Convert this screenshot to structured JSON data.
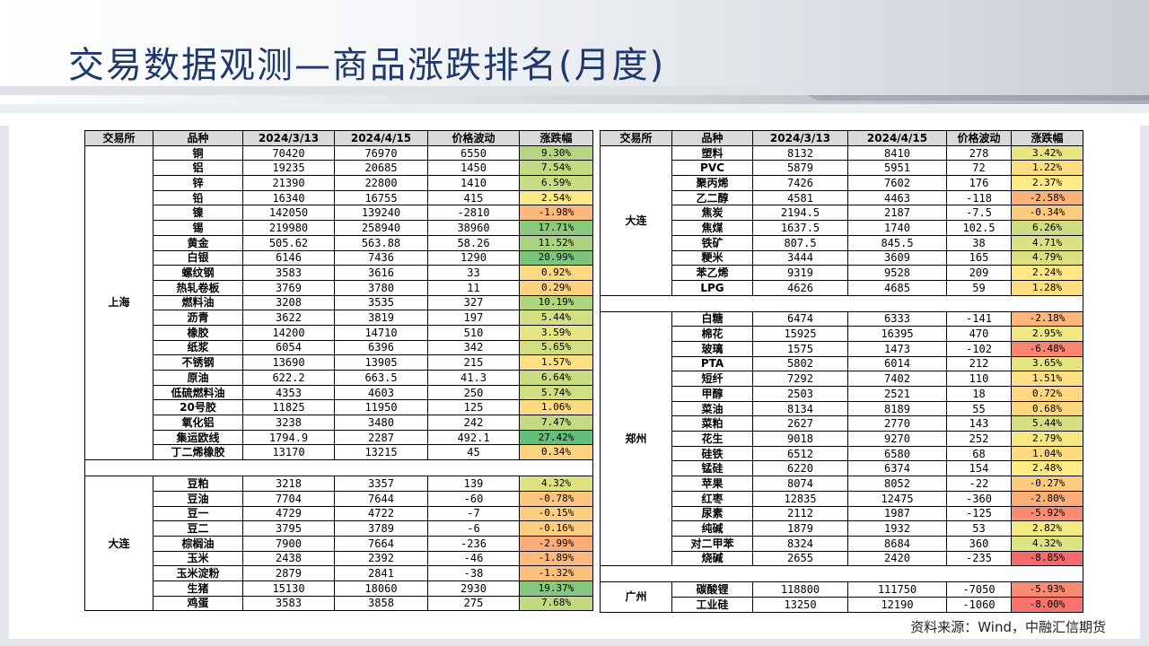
{
  "title": "交易数据观测—商品涨跌排名(月度)",
  "source": "资料来源：Wind，中融汇信期货",
  "headers": [
    "交易所",
    "品种",
    "2024/3/13",
    "2024/4/15",
    "价格波动",
    "涨跌幅"
  ],
  "left_groups": [
    {
      "exchange": "上海",
      "rows": [
        {
          "name": "铜",
          "d1": "70420",
          "d2": "76970",
          "chg": "6550",
          "pct": "9.30%",
          "v": 9.3
        },
        {
          "name": "铝",
          "d1": "19235",
          "d2": "20685",
          "chg": "1450",
          "pct": "7.54%",
          "v": 7.54
        },
        {
          "name": "锌",
          "d1": "21390",
          "d2": "22800",
          "chg": "1410",
          "pct": "6.59%",
          "v": 6.59
        },
        {
          "name": "铅",
          "d1": "16340",
          "d2": "16755",
          "chg": "415",
          "pct": "2.54%",
          "v": 2.54
        },
        {
          "name": "镍",
          "d1": "142050",
          "d2": "139240",
          "chg": "-2810",
          "pct": "-1.98%",
          "v": -1.98
        },
        {
          "name": "锡",
          "d1": "219980",
          "d2": "258940",
          "chg": "38960",
          "pct": "17.71%",
          "v": 17.71
        },
        {
          "name": "黄金",
          "d1": "505.62",
          "d2": "563.88",
          "chg": "58.26",
          "pct": "11.52%",
          "v": 11.52
        },
        {
          "name": "白银",
          "d1": "6146",
          "d2": "7436",
          "chg": "1290",
          "pct": "20.99%",
          "v": 20.99
        },
        {
          "name": "螺纹钢",
          "d1": "3583",
          "d2": "3616",
          "chg": "33",
          "pct": "0.92%",
          "v": 0.92
        },
        {
          "name": "热轧卷板",
          "d1": "3769",
          "d2": "3780",
          "chg": "11",
          "pct": "0.29%",
          "v": 0.29
        },
        {
          "name": "燃料油",
          "d1": "3208",
          "d2": "3535",
          "chg": "327",
          "pct": "10.19%",
          "v": 10.19
        },
        {
          "name": "沥青",
          "d1": "3622",
          "d2": "3819",
          "chg": "197",
          "pct": "5.44%",
          "v": 5.44
        },
        {
          "name": "橡胶",
          "d1": "14200",
          "d2": "14710",
          "chg": "510",
          "pct": "3.59%",
          "v": 3.59
        },
        {
          "name": "纸浆",
          "d1": "6054",
          "d2": "6396",
          "chg": "342",
          "pct": "5.65%",
          "v": 5.65
        },
        {
          "name": "不锈钢",
          "d1": "13690",
          "d2": "13905",
          "chg": "215",
          "pct": "1.57%",
          "v": 1.57
        },
        {
          "name": "原油",
          "d1": "622.2",
          "d2": "663.5",
          "chg": "41.3",
          "pct": "6.64%",
          "v": 6.64
        },
        {
          "name": "低硫燃料油",
          "d1": "4353",
          "d2": "4603",
          "chg": "250",
          "pct": "5.74%",
          "v": 5.74
        },
        {
          "name": "20号胶",
          "d1": "11825",
          "d2": "11950",
          "chg": "125",
          "pct": "1.06%",
          "v": 1.06
        },
        {
          "name": "氧化铝",
          "d1": "3238",
          "d2": "3480",
          "chg": "242",
          "pct": "7.47%",
          "v": 7.47
        },
        {
          "name": "集运欧线",
          "d1": "1794.9",
          "d2": "2287",
          "chg": "492.1",
          "pct": "27.42%",
          "v": 27.42
        },
        {
          "name": "丁二烯橡胶",
          "d1": "13170",
          "d2": "13215",
          "chg": "45",
          "pct": "0.34%",
          "v": 0.34
        }
      ]
    },
    {
      "exchange": "大连",
      "rows": [
        {
          "name": "豆粕",
          "d1": "3218",
          "d2": "3357",
          "chg": "139",
          "pct": "4.32%",
          "v": 4.32
        },
        {
          "name": "豆油",
          "d1": "7704",
          "d2": "7644",
          "chg": "-60",
          "pct": "-0.78%",
          "v": -0.78
        },
        {
          "name": "豆一",
          "d1": "4729",
          "d2": "4722",
          "chg": "-7",
          "pct": "-0.15%",
          "v": -0.15
        },
        {
          "name": "豆二",
          "d1": "3795",
          "d2": "3789",
          "chg": "-6",
          "pct": "-0.16%",
          "v": -0.16
        },
        {
          "name": "棕榈油",
          "d1": "7900",
          "d2": "7664",
          "chg": "-236",
          "pct": "-2.99%",
          "v": -2.99
        },
        {
          "name": "玉米",
          "d1": "2438",
          "d2": "2392",
          "chg": "-46",
          "pct": "-1.89%",
          "v": -1.89
        },
        {
          "name": "玉米淀粉",
          "d1": "2879",
          "d2": "2841",
          "chg": "-38",
          "pct": "-1.32%",
          "v": -1.32
        },
        {
          "name": "生猪",
          "d1": "15130",
          "d2": "18060",
          "chg": "2930",
          "pct": "19.37%",
          "v": 19.37
        },
        {
          "name": "鸡蛋",
          "d1": "3583",
          "d2": "3858",
          "chg": "275",
          "pct": "7.68%",
          "v": 7.68
        }
      ]
    }
  ],
  "right_groups": [
    {
      "exchange": "大连",
      "rows": [
        {
          "name": "塑料",
          "d1": "8132",
          "d2": "8410",
          "chg": "278",
          "pct": "3.42%",
          "v": 3.42
        },
        {
          "name": "PVC",
          "d1": "5879",
          "d2": "5951",
          "chg": "72",
          "pct": "1.22%",
          "v": 1.22
        },
        {
          "name": "聚丙烯",
          "d1": "7426",
          "d2": "7602",
          "chg": "176",
          "pct": "2.37%",
          "v": 2.37
        },
        {
          "name": "乙二醇",
          "d1": "4581",
          "d2": "4463",
          "chg": "-118",
          "pct": "-2.58%",
          "v": -2.58
        },
        {
          "name": "焦炭",
          "d1": "2194.5",
          "d2": "2187",
          "chg": "-7.5",
          "pct": "-0.34%",
          "v": -0.34
        },
        {
          "name": "焦煤",
          "d1": "1637.5",
          "d2": "1740",
          "chg": "102.5",
          "pct": "6.26%",
          "v": 6.26
        },
        {
          "name": "铁矿",
          "d1": "807.5",
          "d2": "845.5",
          "chg": "38",
          "pct": "4.71%",
          "v": 4.71
        },
        {
          "name": "粳米",
          "d1": "3444",
          "d2": "3609",
          "chg": "165",
          "pct": "4.79%",
          "v": 4.79
        },
        {
          "name": "苯乙烯",
          "d1": "9319",
          "d2": "9528",
          "chg": "209",
          "pct": "2.24%",
          "v": 2.24
        },
        {
          "name": "LPG",
          "d1": "4626",
          "d2": "4685",
          "chg": "59",
          "pct": "1.28%",
          "v": 1.28
        }
      ]
    },
    {
      "exchange": "郑州",
      "rows": [
        {
          "name": "白糖",
          "d1": "6474",
          "d2": "6333",
          "chg": "-141",
          "pct": "-2.18%",
          "v": -2.18
        },
        {
          "name": "棉花",
          "d1": "15925",
          "d2": "16395",
          "chg": "470",
          "pct": "2.95%",
          "v": 2.95
        },
        {
          "name": "玻璃",
          "d1": "1575",
          "d2": "1473",
          "chg": "-102",
          "pct": "-6.48%",
          "v": -6.48
        },
        {
          "name": "PTA",
          "d1": "5802",
          "d2": "6014",
          "chg": "212",
          "pct": "3.65%",
          "v": 3.65
        },
        {
          "name": "短纤",
          "d1": "7292",
          "d2": "7402",
          "chg": "110",
          "pct": "1.51%",
          "v": 1.51
        },
        {
          "name": "甲醇",
          "d1": "2503",
          "d2": "2521",
          "chg": "18",
          "pct": "0.72%",
          "v": 0.72
        },
        {
          "name": "菜油",
          "d1": "8134",
          "d2": "8189",
          "chg": "55",
          "pct": "0.68%",
          "v": 0.68
        },
        {
          "name": "菜粕",
          "d1": "2627",
          "d2": "2770",
          "chg": "143",
          "pct": "5.44%",
          "v": 5.44
        },
        {
          "name": "花生",
          "d1": "9018",
          "d2": "9270",
          "chg": "252",
          "pct": "2.79%",
          "v": 2.79
        },
        {
          "name": "硅铁",
          "d1": "6512",
          "d2": "6580",
          "chg": "68",
          "pct": "1.04%",
          "v": 1.04
        },
        {
          "name": "锰硅",
          "d1": "6220",
          "d2": "6374",
          "chg": "154",
          "pct": "2.48%",
          "v": 2.48
        },
        {
          "name": "苹果",
          "d1": "8074",
          "d2": "8052",
          "chg": "-22",
          "pct": "-0.27%",
          "v": -0.27
        },
        {
          "name": "红枣",
          "d1": "12835",
          "d2": "12475",
          "chg": "-360",
          "pct": "-2.80%",
          "v": -2.8
        },
        {
          "name": "尿素",
          "d1": "2112",
          "d2": "1987",
          "chg": "-125",
          "pct": "-5.92%",
          "v": -5.92
        },
        {
          "name": "纯碱",
          "d1": "1879",
          "d2": "1932",
          "chg": "53",
          "pct": "2.82%",
          "v": 2.82
        },
        {
          "name": "对二甲苯",
          "d1": "8324",
          "d2": "8684",
          "chg": "360",
          "pct": "4.32%",
          "v": 4.32
        },
        {
          "name": "烧碱",
          "d1": "2655",
          "d2": "2420",
          "chg": "-235",
          "pct": "-8.85%",
          "v": -8.85
        }
      ]
    },
    {
      "exchange": "广州",
      "rows": [
        {
          "name": "碳酸锂",
          "d1": "118800",
          "d2": "111750",
          "chg": "-7050",
          "pct": "-5.93%",
          "v": -5.93
        },
        {
          "name": "工业硅",
          "d1": "13250",
          "d2": "12190",
          "chg": "-1060",
          "pct": "-8.00%",
          "v": -8.0
        }
      ]
    }
  ],
  "colors": {
    "title": "#1f3a6a",
    "header_bg": "#d9d9d9",
    "scale_red": "#f8696b",
    "scale_yellow": "#ffeb84",
    "scale_green": "#63be7b"
  }
}
